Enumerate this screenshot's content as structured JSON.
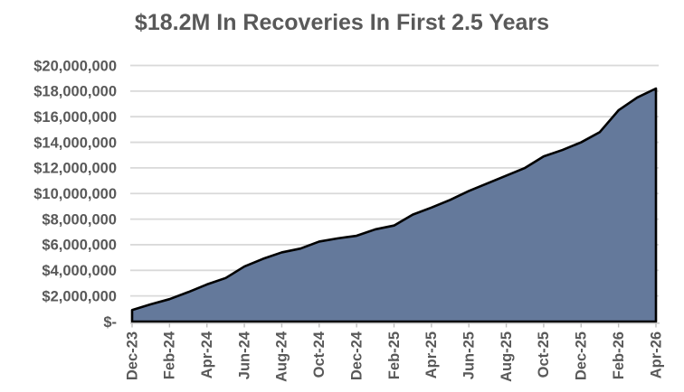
{
  "chart_data": {
    "type": "area",
    "title": "$18.2M In Recoveries In First 2.5 Years",
    "x": [
      "Dec-23",
      "Jan-24",
      "Feb-24",
      "Mar-24",
      "Apr-24",
      "May-24",
      "Jun-24",
      "Jul-24",
      "Aug-24",
      "Sep-24",
      "Oct-24",
      "Nov-24",
      "Dec-24",
      "Jan-25",
      "Feb-25",
      "Mar-25",
      "Apr-25",
      "May-25",
      "Jun-25",
      "Jul-25",
      "Aug-25",
      "Sep-25",
      "Oct-25",
      "Nov-25",
      "Dec-25",
      "Jan-26",
      "Feb-26",
      "Mar-26",
      "Apr-26"
    ],
    "values": [
      900000,
      1350000,
      1750000,
      2300000,
      2900000,
      3400000,
      4300000,
      4900000,
      5400000,
      5700000,
      6250000,
      6500000,
      6700000,
      7200000,
      7500000,
      8350000,
      8900000,
      9500000,
      10200000,
      10800000,
      11400000,
      12000000,
      12900000,
      13400000,
      14000000,
      14800000,
      16500000,
      17500000,
      18200000
    ],
    "ylim": [
      0,
      20000000
    ],
    "y_tick_step": 2000000,
    "y_tick_labels": [
      "$-",
      "$2,000,000",
      "$4,000,000",
      "$6,000,000",
      "$8,000,000",
      "$10,000,000",
      "$12,000,000",
      "$14,000,000",
      "$16,000,000",
      "$18,000,000",
      "$20,000,000"
    ],
    "x_tick_labels": [
      "Dec-23",
      "Feb-24",
      "Apr-24",
      "Jun-24",
      "Aug-24",
      "Oct-24",
      "Dec-24",
      "Feb-25",
      "Apr-25",
      "Jun-25",
      "Aug-25",
      "Oct-25",
      "Dec-25",
      "Feb-26",
      "Apr-26"
    ],
    "x_tick_interval": 2,
    "grid": true,
    "legend": false,
    "colors": {
      "fill": "#64799B",
      "line": "#000000",
      "grid": "#D9D9D9",
      "axis": "#BFBFBF",
      "text": "#595959",
      "background": "#FFFFFF"
    }
  }
}
